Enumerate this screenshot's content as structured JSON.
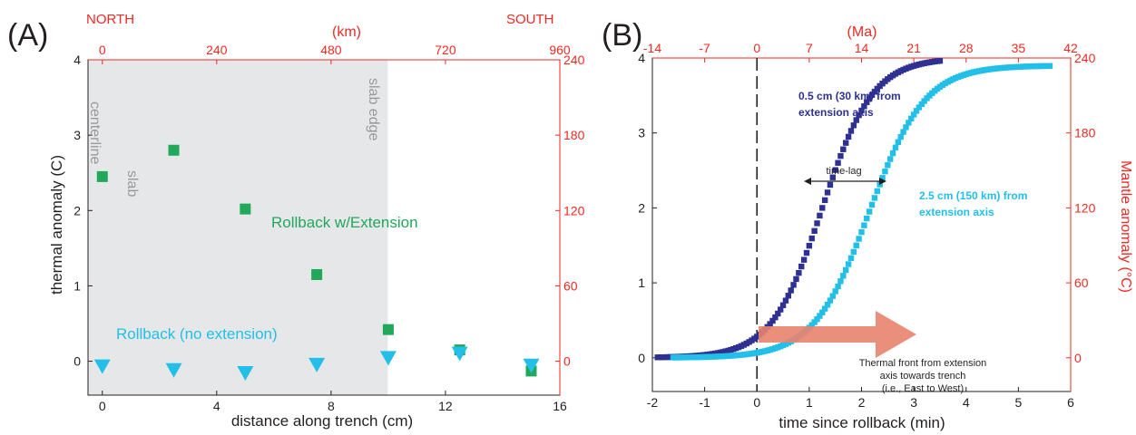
{
  "colors": {
    "black": "#231f20",
    "red": "#ee2a24",
    "green": "#21a85a",
    "cyan": "#22bfe8",
    "navy": "#2e3192",
    "shade": "#e6e7e9",
    "arrow": "#e8836e",
    "gray_text": "#9a9a9a"
  },
  "panels": {
    "a": {
      "tag": "(A)",
      "north": "NORTH",
      "south": "SOUTH",
      "centerline_1": "slab",
      "centerline_2": "centerline",
      "edge_label": "slab edge",
      "label_ext": "Rollback w/Extension",
      "label_noext": "Rollback (no extension)"
    },
    "b": {
      "tag": "(B)",
      "series1_line1": "0.5 cm (30 km) from",
      "series1_line2": "extension axis",
      "series2_line1": "2.5 cm (150 km) from",
      "series2_line2": "extension axis",
      "timelag": "time-lag",
      "front_1": "Thermal front from extension",
      "front_2": "axis towards trench",
      "front_3": "(i.e., East to West)"
    }
  },
  "chart_data": [
    {
      "type": "scatter",
      "xlabel": "distance along trench (cm)",
      "ylabel": "thermal anomaly (C)",
      "x_ticks": [
        "0",
        "4",
        "8",
        "12",
        "16"
      ],
      "y_ticks": [
        "0",
        "1",
        "2",
        "3",
        "4"
      ],
      "xlim": [
        -0.5,
        16
      ],
      "ylim": [
        -0.45,
        4
      ],
      "top_axis_label": "(km)",
      "top_ticks": [
        "0",
        "240",
        "480",
        "720",
        "960"
      ],
      "top_lim": [
        -30,
        960
      ],
      "right_ticks": [
        "0",
        "60",
        "120",
        "180",
        "240"
      ],
      "right_lim": [
        -27,
        240
      ],
      "shaded_x_range": [
        -0.5,
        10
      ],
      "vline_x": 10,
      "series": [
        {
          "name": "Rollback w/Extension",
          "marker": "square",
          "color": "#21a85a",
          "x": [
            0,
            2.5,
            5,
            7.5,
            10,
            12.5,
            15
          ],
          "y": [
            2.45,
            2.8,
            2.02,
            1.15,
            0.42,
            0.15,
            -0.13
          ]
        },
        {
          "name": "Rollback (no extension)",
          "marker": "triangle-down",
          "color": "#22bfe8",
          "x": [
            0,
            2.5,
            5,
            7.5,
            10,
            12.5,
            15
          ],
          "y": [
            -0.06,
            -0.11,
            -0.15,
            -0.04,
            0.05,
            0.11,
            -0.05
          ]
        }
      ]
    },
    {
      "type": "line",
      "xlabel": "time since rollback (min)",
      "ylabel": "",
      "x_ticks": [
        "-2",
        "-1",
        "0",
        "1",
        "2",
        "3",
        "4",
        "5",
        "6"
      ],
      "y_ticks": [
        "0",
        "1",
        "2",
        "3",
        "4"
      ],
      "xlim": [
        -2,
        6
      ],
      "ylim": [
        -0.45,
        4
      ],
      "top_axis_label": "(Ma)",
      "top_ticks": [
        "-14",
        "-7",
        "0",
        "7",
        "14",
        "21",
        "28",
        "35",
        "42"
      ],
      "top_lim": [
        -14,
        42
      ],
      "right_axis_label": "Mantle anomaly (°C)",
      "right_ticks": [
        "0",
        "60",
        "120",
        "180",
        "240"
      ],
      "right_lim": [
        -27,
        240
      ],
      "vline_x": 0,
      "series": [
        {
          "marker": "square",
          "color": "#2e3192",
          "x_start": -1.9,
          "x_end": 4.45,
          "y0": 0,
          "y1": 4.0,
          "t_mid": 1.25,
          "width": 1.55
        },
        {
          "marker": "square",
          "color": "#22bfe8",
          "x_start": -1.6,
          "x_end": 5.6,
          "y0": 0,
          "y1": 3.9,
          "t_mid": 2.15,
          "width": 1.7
        }
      ]
    }
  ]
}
